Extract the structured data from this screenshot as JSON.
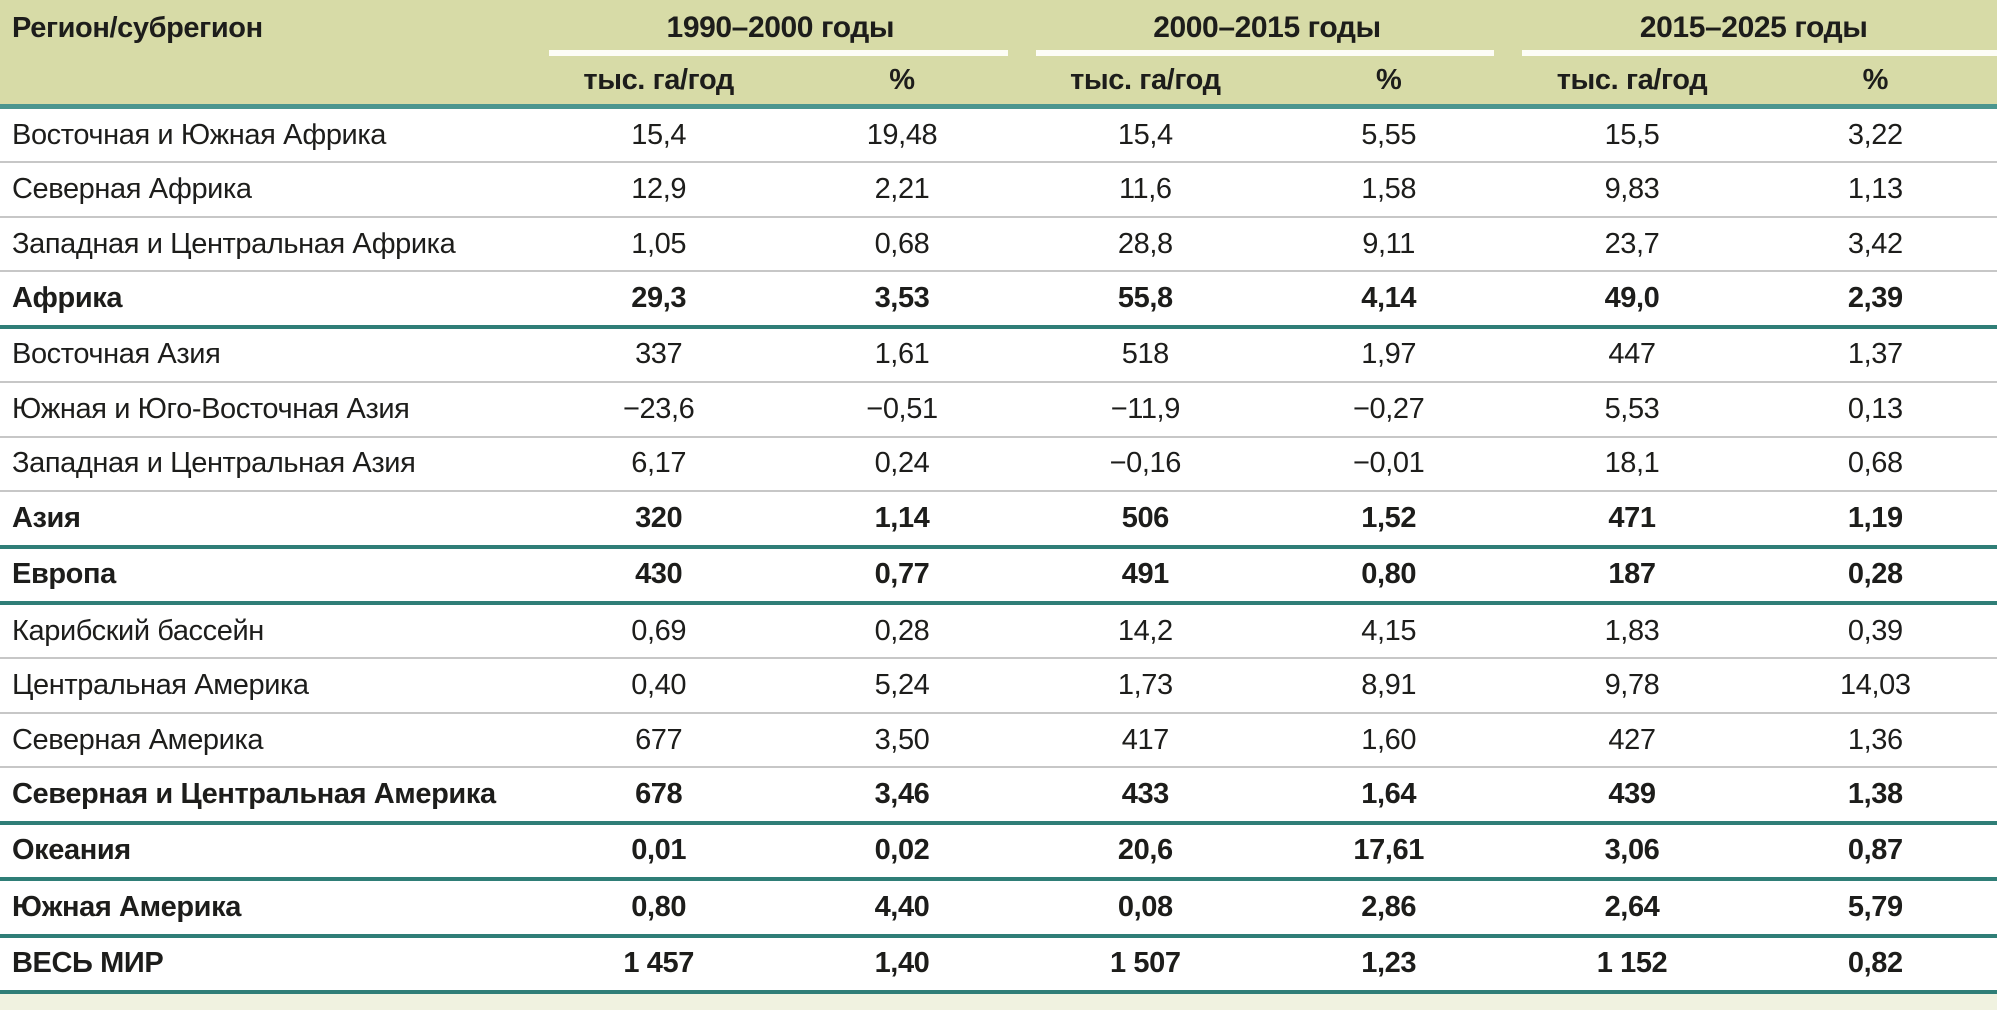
{
  "table": {
    "header": {
      "region_label": "Регион/субрегион",
      "groups": [
        {
          "label": "1990–2000 годы"
        },
        {
          "label": "2000–2015 годы"
        },
        {
          "label": "2015–2025 годы"
        }
      ],
      "subheaders": {
        "rate": "тыс. га/год",
        "percent": "%"
      }
    },
    "rows": [
      {
        "region": "Восточная и Южная Африка",
        "bold": false,
        "separator_after": "thin",
        "values": [
          "15,4",
          "19,48",
          "15,4",
          "5,55",
          "15,5",
          "3,22"
        ]
      },
      {
        "region": "Северная Африка",
        "bold": false,
        "separator_after": "thin",
        "values": [
          "12,9",
          "2,21",
          "11,6",
          "1,58",
          "9,83",
          "1,13"
        ]
      },
      {
        "region": "Западная и Центральная Африка",
        "bold": false,
        "separator_after": "thin",
        "values": [
          "1,05",
          "0,68",
          "28,8",
          "9,11",
          "23,7",
          "3,42"
        ]
      },
      {
        "region": "Африка",
        "bold": true,
        "separator_after": "teal",
        "values": [
          "29,3",
          "3,53",
          "55,8",
          "4,14",
          "49,0",
          "2,39"
        ]
      },
      {
        "region": "Восточная Азия",
        "bold": false,
        "separator_after": "thin",
        "values": [
          "337",
          "1,61",
          "518",
          "1,97",
          "447",
          "1,37"
        ]
      },
      {
        "region": "Южная и Юго-Восточная Азия",
        "bold": false,
        "separator_after": "thin",
        "values": [
          "−23,6",
          "−0,51",
          "−11,9",
          "−0,27",
          "5,53",
          "0,13"
        ]
      },
      {
        "region": "Западная и Центральная Азия",
        "bold": false,
        "separator_after": "thin",
        "values": [
          "6,17",
          "0,24",
          "−0,16",
          "−0,01",
          "18,1",
          "0,68"
        ]
      },
      {
        "region": "Азия",
        "bold": true,
        "separator_after": "teal",
        "values": [
          "320",
          "1,14",
          "506",
          "1,52",
          "471",
          "1,19"
        ]
      },
      {
        "region": "Европа",
        "bold": true,
        "separator_after": "teal",
        "values": [
          "430",
          "0,77",
          "491",
          "0,80",
          "187",
          "0,28"
        ]
      },
      {
        "region": "Карибский бассейн",
        "bold": false,
        "separator_after": "thin",
        "values": [
          "0,69",
          "0,28",
          "14,2",
          "4,15",
          "1,83",
          "0,39"
        ]
      },
      {
        "region": "Центральная Америка",
        "bold": false,
        "separator_after": "thin",
        "values": [
          "0,40",
          "5,24",
          "1,73",
          "8,91",
          "9,78",
          "14,03"
        ]
      },
      {
        "region": "Северная Америка",
        "bold": false,
        "separator_after": "thin",
        "values": [
          "677",
          "3,50",
          "417",
          "1,60",
          "427",
          "1,36"
        ]
      },
      {
        "region": "Северная и Центральная Америка",
        "bold": true,
        "separator_after": "teal",
        "values": [
          "678",
          "3,46",
          "433",
          "1,64",
          "439",
          "1,38"
        ]
      },
      {
        "region": "Океания",
        "bold": true,
        "separator_after": "teal",
        "values": [
          "0,01",
          "0,02",
          "20,6",
          "17,61",
          "3,06",
          "0,87"
        ]
      },
      {
        "region": "Южная Америка",
        "bold": true,
        "separator_after": "teal",
        "values": [
          "0,80",
          "4,40",
          "0,08",
          "2,86",
          "2,64",
          "5,79"
        ]
      },
      {
        "region": "ВЕСЬ МИР",
        "bold": true,
        "separator_after": "teal",
        "values": [
          "1 457",
          "1,40",
          "1 507",
          "1,23",
          "1 152",
          "0,82"
        ]
      }
    ],
    "colors": {
      "header_bg": "#d7dba7",
      "footer_bg": "#f0f2e0",
      "teal_line": "#2f7e77",
      "teal_line_header": "#4b968f",
      "row_separator": "#c7c7c7",
      "text": "#1d1d1b"
    }
  }
}
